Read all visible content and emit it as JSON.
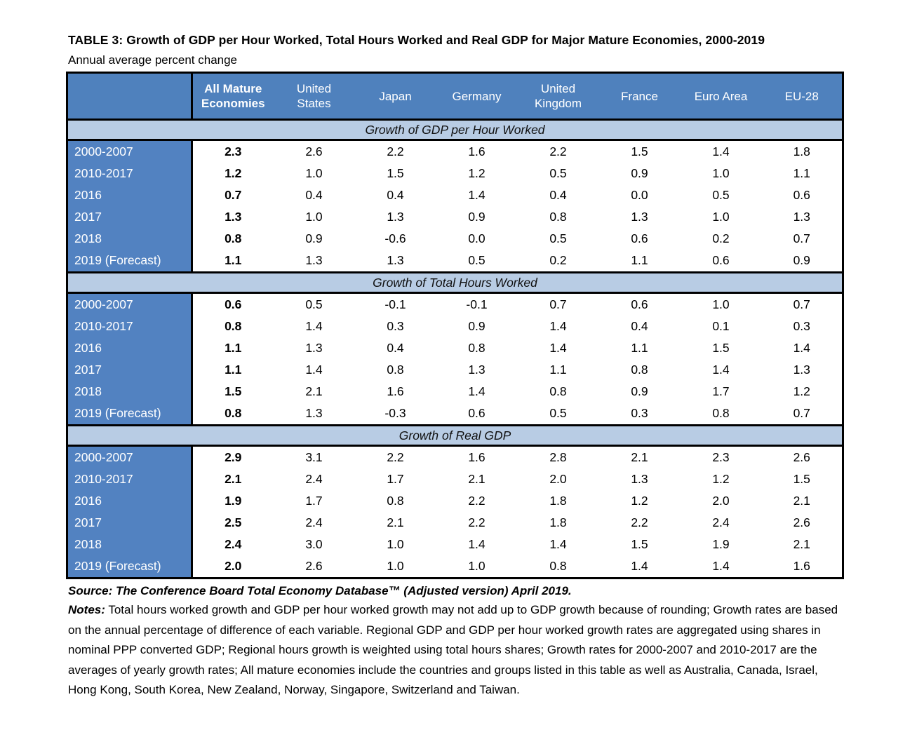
{
  "page": {
    "title": "TABLE 3: Growth of GDP per Hour Worked, Total Hours Worked and Real GDP for Major Mature Economies, 2000-2019",
    "subtitle": "Annual average percent change"
  },
  "table": {
    "columns": [
      "All Mature\nEconomies",
      "United\nStates",
      "Japan",
      "Germany",
      "United\nKingdom",
      "France",
      "Euro Area",
      "EU-28"
    ],
    "sections": [
      {
        "header": "Growth of GDP per Hour Worked",
        "rows": [
          {
            "label": "2000-2007",
            "values": [
              "2.3",
              "2.6",
              "2.2",
              "1.6",
              "2.2",
              "1.5",
              "1.4",
              "1.8"
            ]
          },
          {
            "label": "2010-2017",
            "values": [
              "1.2",
              "1.0",
              "1.5",
              "1.2",
              "0.5",
              "0.9",
              "1.0",
              "1.1"
            ]
          },
          {
            "label": "2016",
            "values": [
              "0.7",
              "0.4",
              "0.4",
              "1.4",
              "0.4",
              "0.0",
              "0.5",
              "0.6"
            ]
          },
          {
            "label": "2017",
            "values": [
              "1.3",
              "1.0",
              "1.3",
              "0.9",
              "0.8",
              "1.3",
              "1.0",
              "1.3"
            ]
          },
          {
            "label": "2018",
            "values": [
              "0.8",
              "0.9",
              "-0.6",
              "0.0",
              "0.5",
              "0.6",
              "0.2",
              "0.7"
            ]
          },
          {
            "label": "2019 (Forecast)",
            "values": [
              "1.1",
              "1.3",
              "1.3",
              "0.5",
              "0.2",
              "1.1",
              "0.6",
              "0.9"
            ]
          }
        ]
      },
      {
        "header": "Growth of Total Hours Worked",
        "rows": [
          {
            "label": "2000-2007",
            "values": [
              "0.6",
              "0.5",
              "-0.1",
              "-0.1",
              "0.7",
              "0.6",
              "1.0",
              "0.7"
            ]
          },
          {
            "label": "2010-2017",
            "values": [
              "0.8",
              "1.4",
              "0.3",
              "0.9",
              "1.4",
              "0.4",
              "0.1",
              "0.3"
            ]
          },
          {
            "label": "2016",
            "values": [
              "1.1",
              "1.3",
              "0.4",
              "0.8",
              "1.4",
              "1.1",
              "1.5",
              "1.4"
            ]
          },
          {
            "label": "2017",
            "values": [
              "1.1",
              "1.4",
              "0.8",
              "1.3",
              "1.1",
              "0.8",
              "1.4",
              "1.3"
            ]
          },
          {
            "label": "2018",
            "values": [
              "1.5",
              "2.1",
              "1.6",
              "1.4",
              "0.8",
              "0.9",
              "1.7",
              "1.2"
            ]
          },
          {
            "label": "2019 (Forecast)",
            "values": [
              "0.8",
              "1.3",
              "-0.3",
              "0.6",
              "0.5",
              "0.3",
              "0.8",
              "0.7"
            ]
          }
        ]
      },
      {
        "header": "Growth of Real GDP",
        "rows": [
          {
            "label": "2000-2007",
            "values": [
              "2.9",
              "3.1",
              "2.2",
              "1.6",
              "2.8",
              "2.1",
              "2.3",
              "2.6"
            ]
          },
          {
            "label": "2010-2017",
            "values": [
              "2.1",
              "2.4",
              "1.7",
              "2.1",
              "2.0",
              "1.3",
              "1.2",
              "1.5"
            ]
          },
          {
            "label": "2016",
            "values": [
              "1.9",
              "1.7",
              "0.8",
              "2.2",
              "1.8",
              "1.2",
              "2.0",
              "2.1"
            ]
          },
          {
            "label": "2017",
            "values": [
              "2.5",
              "2.4",
              "2.1",
              "2.2",
              "1.8",
              "2.2",
              "2.4",
              "2.6"
            ]
          },
          {
            "label": "2018",
            "values": [
              "2.4",
              "3.0",
              "1.0",
              "1.4",
              "1.4",
              "1.5",
              "1.9",
              "2.1"
            ]
          },
          {
            "label": "2019 (Forecast)",
            "values": [
              "2.0",
              "2.6",
              "1.0",
              "1.0",
              "0.8",
              "1.4",
              "1.4",
              "1.6"
            ]
          }
        ]
      }
    ]
  },
  "footer": {
    "source": "Source: The Conference Board Total Economy Database™ (Adjusted version) April 2019.",
    "notes_label": "Notes:",
    "notes_text": " Total hours worked growth and GDP per hour worked growth may not add up to GDP growth because of rounding; Growth rates are based on the annual percentage of difference of each variable. Regional GDP and GDP per hour worked growth rates are aggregated using shares in nominal PPP converted GDP; Regional hours growth is weighted using total hours shares; Growth rates for 2000-2007 and 2010-2017 are the averages of yearly growth rates; All mature economies include the countries and groups listed in this table as well as Australia, Canada, Israel, Hong Kong, South Korea, New Zealand, Norway, Singapore, Switzerland and Taiwan."
  },
  "colors": {
    "header_bg": "#4f81bd",
    "row_label_bg": "#5282c1",
    "section_band_bg": "#b8cce4",
    "border": "#000000"
  }
}
